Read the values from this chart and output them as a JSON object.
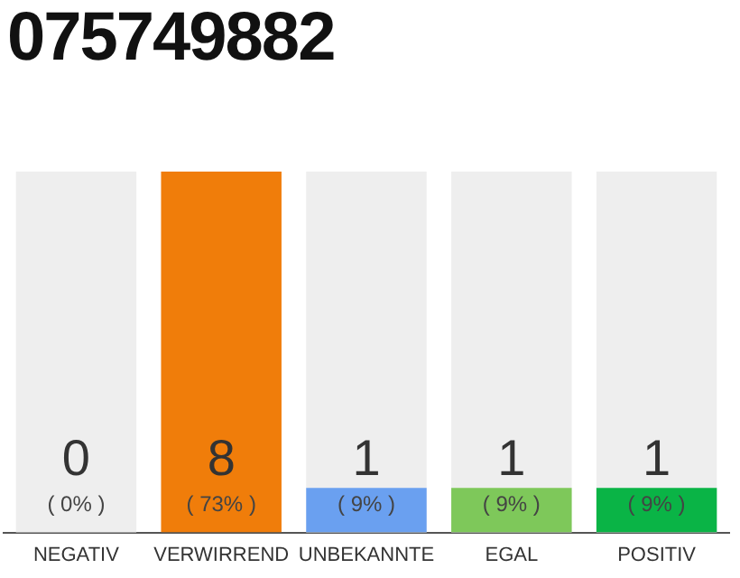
{
  "chart_data": {
    "type": "bar",
    "title": "075749882",
    "categories": [
      "NEGATIV",
      "VERWIRREND",
      "UNBEKANNTE",
      "EGAL",
      "POSITIV"
    ],
    "values": [
      0,
      73,
      9,
      9,
      9
    ],
    "colors": [
      "#e03c3c",
      "#f07d0a",
      "#6aa0f0",
      "#7ec85a",
      "#0ab446"
    ],
    "annotations": [
      "0",
      "8",
      "1",
      "1",
      "1"
    ],
    "value_labels": [
      "( 0% )",
      "( 73% )",
      "( 9% )",
      "( 9% )",
      "( 9% )"
    ],
    "bands": [
      {
        "axis": "x",
        "from": "NEGATIV",
        "to": "NEGATIV",
        "color": "#eeeeee"
      },
      {
        "axis": "x",
        "from": "UNBEKANNTE",
        "to": "UNBEKANNTE",
        "color": "#eeeeee"
      },
      {
        "axis": "x",
        "from": "EGAL",
        "to": "EGAL",
        "color": "#eeeeee"
      },
      {
        "axis": "x",
        "from": "POSITIV",
        "to": "POSITIV",
        "color": "#eeeeee"
      }
    ],
    "grid": false,
    "legend": false
  }
}
